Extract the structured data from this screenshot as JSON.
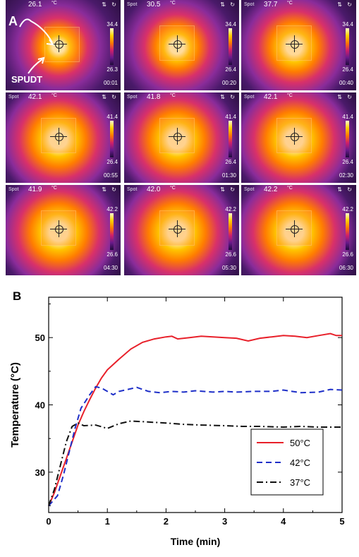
{
  "panel_a": {
    "label": "A",
    "sublabel": "SPUDT",
    "spot_label": "Spot",
    "unit": "°C",
    "tiles": [
      {
        "temp": "26.1",
        "max": "34.4",
        "min": "26.3",
        "time": "00:01"
      },
      {
        "temp": "30.5",
        "max": "34.4",
        "min": "26.4",
        "time": "00:20"
      },
      {
        "temp": "37.7",
        "max": "34.4",
        "min": "26.4",
        "time": "00:40"
      },
      {
        "temp": "42.1",
        "max": "41.4",
        "min": "26.4",
        "time": "00:55"
      },
      {
        "temp": "41.8",
        "max": "41.4",
        "min": "26.4",
        "time": "01:30"
      },
      {
        "temp": "42.1",
        "max": "41.4",
        "min": "26.4",
        "time": "02:30"
      },
      {
        "temp": "41.9",
        "max": "42.2",
        "min": "26.6",
        "time": "04:30"
      },
      {
        "temp": "42.0",
        "max": "42.2",
        "min": "26.6",
        "time": "05:30"
      },
      {
        "temp": "42.2",
        "max": "42.2",
        "min": "26.6",
        "time": "06:30"
      }
    ]
  },
  "panel_b": {
    "label": "B"
  },
  "chart_data": {
    "type": "line",
    "xlabel": "Time (min)",
    "ylabel": "Temperature (°C)",
    "xlim": [
      0,
      5
    ],
    "ylim": [
      24,
      56
    ],
    "xticks": [
      "0",
      "1",
      "2",
      "3",
      "4",
      "5"
    ],
    "yticks": [
      "30",
      "40",
      "50"
    ],
    "legend_position": "bottom-right",
    "series": [
      {
        "name": "50°C",
        "color": "#e8202a",
        "dash": "solid",
        "x": [
          0,
          0.1,
          0.2,
          0.3,
          0.4,
          0.5,
          0.6,
          0.7,
          0.8,
          0.9,
          1.0,
          1.2,
          1.4,
          1.6,
          1.8,
          2.0,
          2.1,
          2.2,
          2.4,
          2.6,
          2.8,
          3.0,
          3.2,
          3.4,
          3.6,
          3.8,
          4.0,
          4.2,
          4.4,
          4.6,
          4.8,
          4.9,
          5.0
        ],
        "y": [
          25,
          27,
          29.5,
          32,
          34.5,
          37,
          39,
          40.8,
          42.5,
          44,
          45.2,
          46.8,
          48.3,
          49.3,
          49.8,
          50.1,
          50.2,
          49.8,
          50.0,
          50.2,
          50.1,
          50.0,
          49.9,
          49.5,
          49.9,
          50.1,
          50.3,
          50.2,
          50.0,
          50.3,
          50.6,
          50.3,
          50.3
        ]
      },
      {
        "name": "42°C",
        "color": "#1e2fc8",
        "dash": "8,5",
        "x": [
          0,
          0.15,
          0.25,
          0.35,
          0.45,
          0.55,
          0.7,
          0.8,
          0.9,
          1.0,
          1.1,
          1.2,
          1.35,
          1.5,
          1.7,
          1.9,
          2.1,
          2.3,
          2.5,
          2.8,
          3.0,
          3.2,
          3.5,
          3.8,
          4.0,
          4.3,
          4.6,
          4.8,
          5.0
        ],
        "y": [
          25,
          26.5,
          29.5,
          33,
          36.5,
          39.5,
          41.5,
          42.7,
          42.5,
          42.0,
          41.5,
          42.0,
          42.3,
          42.6,
          42.0,
          41.8,
          42.0,
          41.9,
          42.1,
          41.9,
          42.0,
          41.9,
          42.0,
          42.0,
          42.2,
          41.8,
          41.9,
          42.3,
          42.2
        ]
      },
      {
        "name": "37°C",
        "color": "#111111",
        "dash": "9,4,2,4",
        "x": [
          0,
          0.1,
          0.2,
          0.3,
          0.4,
          0.5,
          0.6,
          0.8,
          1.0,
          1.2,
          1.4,
          1.6,
          1.8,
          2.0,
          2.3,
          2.6,
          3.0,
          3.3,
          3.6,
          4.0,
          4.3,
          4.6,
          5.0
        ],
        "y": [
          25,
          27.5,
          31,
          34.5,
          36.8,
          37.3,
          36.9,
          37.0,
          36.5,
          37.2,
          37.6,
          37.5,
          37.4,
          37.3,
          37.1,
          37.0,
          36.9,
          36.8,
          36.8,
          36.7,
          36.8,
          36.7,
          36.7
        ]
      }
    ]
  }
}
